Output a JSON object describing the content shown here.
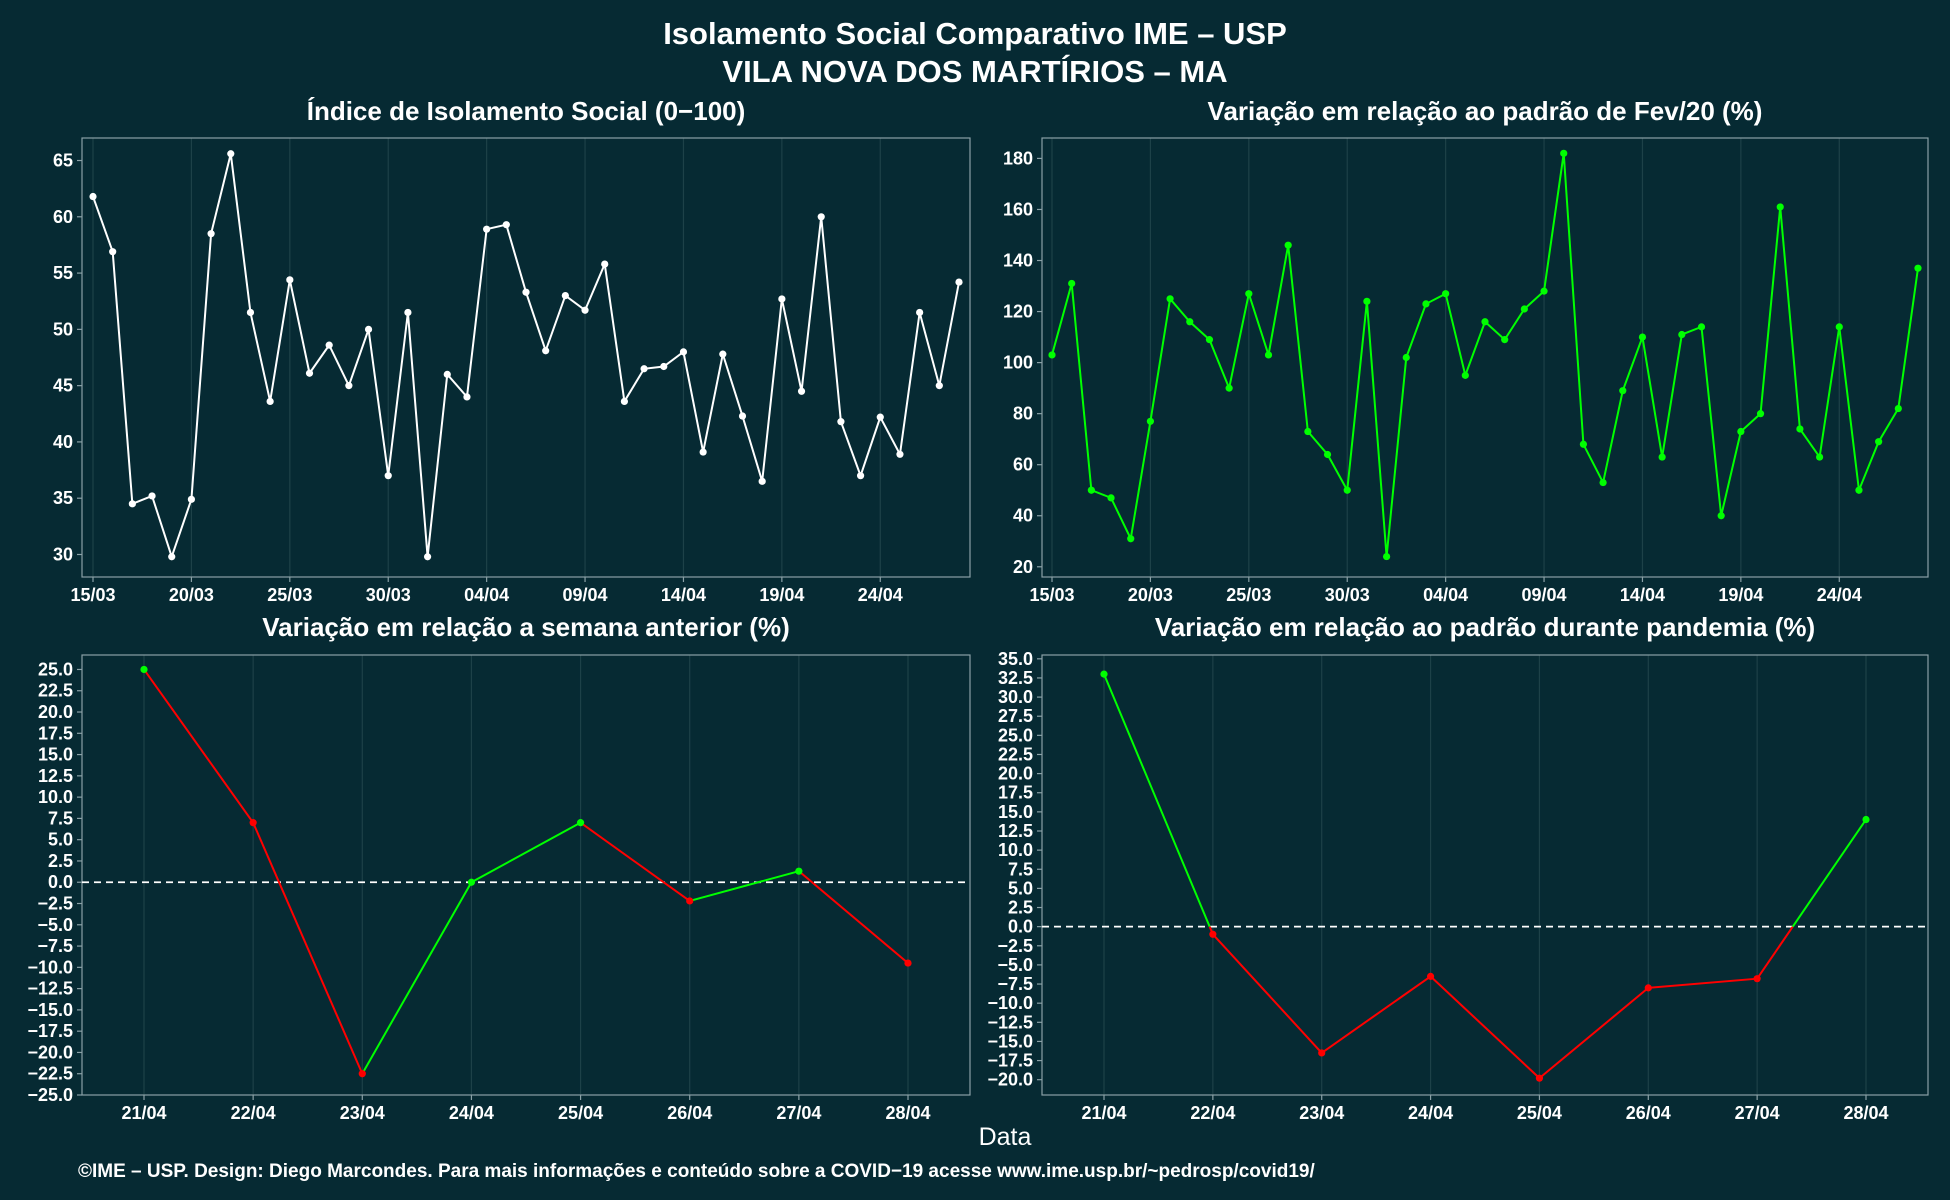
{
  "figure": {
    "title_line1": "Isolamento Social Comparativo IME – USP",
    "title_line2": "VILA NOVA DOS MARTÍRIOS – MA",
    "xlabel": "Data",
    "footer": "©IME – USP. Design: Diego Marcondes. Para mais informações e conteúdo sobre a COVID−19 acesse www.ime.usp.br/~pedrosp/covid19/"
  },
  "colors": {
    "background": "#062a33",
    "grid": "#1d4148",
    "border": "#8aa0a6",
    "white_series": "#ffffff",
    "green": "#00ff00",
    "red": "#ff0000"
  },
  "chart_data": [
    {
      "type": "line",
      "title": "Índice de Isolamento Social (0−100)",
      "x_tick_labels": [
        "15/03",
        "20/03",
        "25/03",
        "30/03",
        "04/04",
        "09/04",
        "14/04",
        "19/04",
        "24/04"
      ],
      "x_tick_indices": [
        0,
        5,
        10,
        15,
        20,
        25,
        30,
        35,
        40
      ],
      "y_ticks": [
        30,
        35,
        40,
        45,
        50,
        55,
        60,
        65
      ],
      "ylim": [
        28.0,
        67.0
      ],
      "grid": true,
      "series": [
        {
          "values": [
            61.8,
            56.9,
            34.5,
            35.2,
            29.8,
            34.9,
            58.5,
            65.6,
            51.5,
            43.6,
            54.4,
            46.1,
            48.6,
            45.0,
            50.0,
            37.0,
            51.5,
            29.8,
            46.0,
            44.0,
            58.9,
            59.3,
            53.3,
            48.1,
            53.0,
            51.7,
            55.8,
            43.6,
            46.5,
            46.7,
            48.0,
            39.1,
            47.8,
            42.3,
            36.5,
            52.7,
            44.5,
            60.0,
            41.8,
            37.0,
            42.2,
            38.9,
            51.5,
            45.0,
            54.2
          ]
        }
      ]
    },
    {
      "type": "line",
      "title": "Variação em relação ao padrão de Fev/20 (%)",
      "x_tick_labels": [
        "15/03",
        "20/03",
        "25/03",
        "30/03",
        "04/04",
        "09/04",
        "14/04",
        "19/04",
        "24/04"
      ],
      "x_tick_indices": [
        0,
        5,
        10,
        15,
        20,
        25,
        30,
        35,
        40
      ],
      "y_ticks": [
        20,
        40,
        60,
        80,
        100,
        120,
        140,
        160,
        180
      ],
      "ylim": [
        16,
        188
      ],
      "grid": true,
      "series": [
        {
          "values": [
            103,
            131,
            50,
            47,
            31,
            77,
            125,
            116,
            109,
            90,
            127,
            103,
            146,
            73,
            64,
            50,
            124,
            24,
            102,
            123,
            127,
            95,
            116,
            109,
            121,
            128,
            182,
            68,
            53,
            89,
            110,
            63,
            111,
            114,
            40,
            73,
            80,
            161,
            74,
            63,
            114,
            50,
            69,
            82,
            137
          ]
        }
      ]
    },
    {
      "type": "line",
      "title": "Variação em relação a semana anterior (%)",
      "categories": [
        "21/04",
        "22/04",
        "23/04",
        "24/04",
        "25/04",
        "26/04",
        "27/04",
        "28/04"
      ],
      "y_ticks": [
        25.0,
        22.5,
        20.0,
        17.5,
        15.0,
        12.5,
        10.0,
        7.5,
        5.0,
        2.5,
        0.0,
        -2.5,
        -5.0,
        -7.5,
        -10.0,
        -12.5,
        -15.0,
        -17.5,
        -20.0,
        -22.5,
        -25.0
      ],
      "y_tick_labels": [
        "25.0",
        "22.5",
        "20.0",
        "17.5",
        "15.0",
        "12.5",
        "10.0",
        "7.5",
        "5.0",
        "2.5",
        "0.0",
        "−2.5",
        "−5.0",
        "−7.5",
        "−10.0",
        "−12.5",
        "−15.0",
        "−17.5",
        "−20.0",
        "−22.5",
        "−25.0"
      ],
      "ylim": [
        -25.0,
        26.7
      ],
      "reference_line": 0,
      "segment_colors": "green when rising, red when falling",
      "series": [
        {
          "values": [
            25.0,
            7.0,
            -22.5,
            0.0,
            7.0,
            -2.2,
            1.3,
            -9.5
          ]
        }
      ]
    },
    {
      "type": "line",
      "title": "Variação em relação ao padrão durante pandemia (%)",
      "categories": [
        "21/04",
        "22/04",
        "23/04",
        "24/04",
        "25/04",
        "26/04",
        "27/04",
        "28/04"
      ],
      "y_ticks": [
        35.0,
        32.5,
        30.0,
        27.5,
        25.0,
        22.5,
        20.0,
        17.5,
        15.0,
        12.5,
        10.0,
        7.5,
        5.0,
        2.5,
        0.0,
        -2.5,
        -5.0,
        -7.5,
        -10.0,
        -12.5,
        -15.0,
        -17.5,
        -20.0
      ],
      "y_tick_labels": [
        "35.0",
        "32.5",
        "30.0",
        "27.5",
        "25.0",
        "22.5",
        "20.0",
        "17.5",
        "15.0",
        "12.5",
        "10.0",
        "7.5",
        "5.0",
        "2.5",
        "0.0",
        "−2.5",
        "−5.0",
        "−7.5",
        "−10.0",
        "−12.5",
        "−15.0",
        "−17.5",
        "−20.0"
      ],
      "ylim": [
        -22.0,
        35.5
      ],
      "reference_line": 0,
      "segment_colors": "green when above zero, red when below zero",
      "series": [
        {
          "values": [
            33.0,
            -1.0,
            -16.5,
            -6.5,
            -19.8,
            -8.0,
            -6.8,
            14.0
          ]
        }
      ]
    }
  ]
}
